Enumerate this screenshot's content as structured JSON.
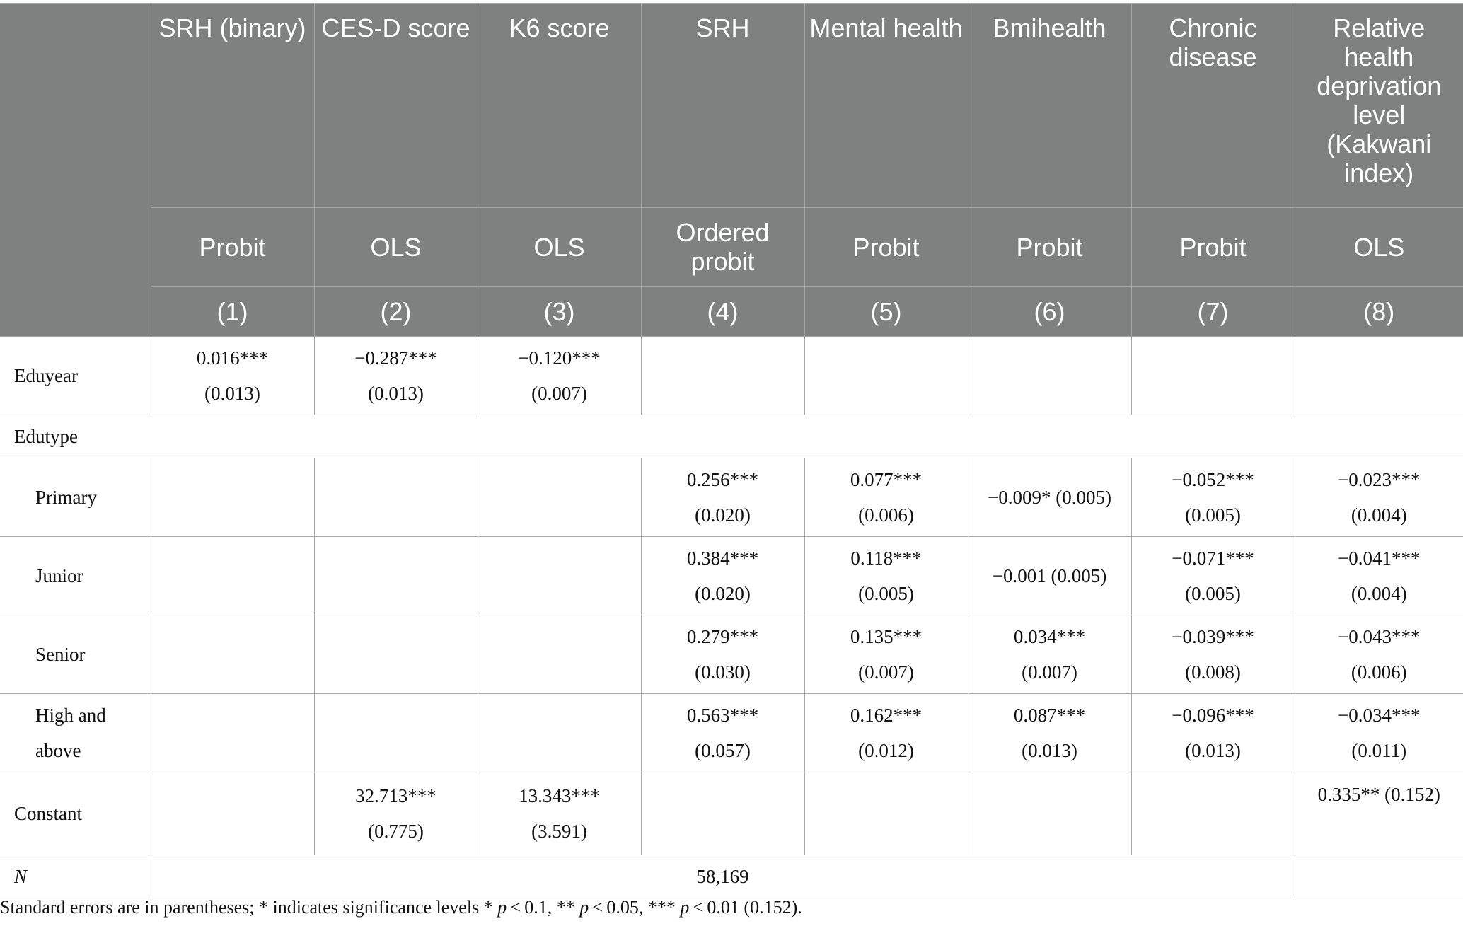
{
  "header": {
    "columns": [
      {
        "title": "SRH (binary)",
        "method": "Probit",
        "num": "(1)"
      },
      {
        "title": "CES-D score",
        "method": "OLS",
        "num": "(2)"
      },
      {
        "title": "K6 score",
        "method": "OLS",
        "num": "(3)"
      },
      {
        "title": "SRH",
        "method": "Ordered probit",
        "num": "(4)"
      },
      {
        "title": "Mental health",
        "method": "Probit",
        "num": "(5)"
      },
      {
        "title": "Bmihealth",
        "method": "Probit",
        "num": "(6)"
      },
      {
        "title": "Chronic disease",
        "method": "Probit",
        "num": "(7)"
      },
      {
        "title": "Relative health deprivation level (Kakwani index)",
        "method": "OLS",
        "num": "(8)"
      }
    ]
  },
  "rows": {
    "eduyear": {
      "label": "Eduyear",
      "cells": [
        [
          "0.016***",
          "(0.013)"
        ],
        [
          "−0.287***",
          "(0.013)"
        ],
        [
          "−0.120***",
          "(0.007)"
        ],
        [],
        [],
        [],
        [],
        []
      ]
    },
    "edutype": {
      "label": "Edutype"
    },
    "primary": {
      "label": "Primary",
      "cells": [
        [],
        [],
        [],
        [
          "0.256***",
          "(0.020)"
        ],
        [
          "0.077***",
          "(0.006)"
        ],
        [
          "−0.009* (0.005)"
        ],
        [
          "−0.052***",
          "(0.005)"
        ],
        [
          "−0.023***",
          "(0.004)"
        ]
      ]
    },
    "junior": {
      "label": "Junior",
      "cells": [
        [],
        [],
        [],
        [
          "0.384***",
          "(0.020)"
        ],
        [
          "0.118***",
          "(0.005)"
        ],
        [
          "−0.001 (0.005)"
        ],
        [
          "−0.071***",
          "(0.005)"
        ],
        [
          "−0.041***",
          "(0.004)"
        ]
      ]
    },
    "senior": {
      "label": "Senior",
      "cells": [
        [],
        [],
        [],
        [
          "0.279***",
          "(0.030)"
        ],
        [
          "0.135***",
          "(0.007)"
        ],
        [
          "0.034***",
          "(0.007)"
        ],
        [
          "−0.039***",
          "(0.008)"
        ],
        [
          "−0.043***",
          "(0.006)"
        ]
      ]
    },
    "high": {
      "label_line1": "High and",
      "label_line2": "above",
      "cells": [
        [],
        [],
        [],
        [
          "0.563***",
          "(0.057)"
        ],
        [
          "0.162***",
          "(0.012)"
        ],
        [
          "0.087***",
          "(0.013)"
        ],
        [
          "−0.096***",
          "(0.013)"
        ],
        [
          "−0.034***",
          "(0.011)"
        ]
      ]
    },
    "constant": {
      "label": "Constant",
      "cells": [
        [],
        [
          "32.713***",
          "(0.775)"
        ],
        [
          "13.343***",
          "(3.591)"
        ],
        [],
        [],
        [],
        [],
        [
          "0.335** (0.152)"
        ]
      ]
    },
    "n": {
      "label": "N",
      "value": "58,169"
    }
  },
  "note": {
    "p1": "Standard errors are in parentheses; * indicates significance levels * ",
    "p": "p",
    "t1": " < 0.1, ** ",
    "t2": " < 0.05, *** ",
    "t3": " < 0.01 (0.152)."
  }
}
